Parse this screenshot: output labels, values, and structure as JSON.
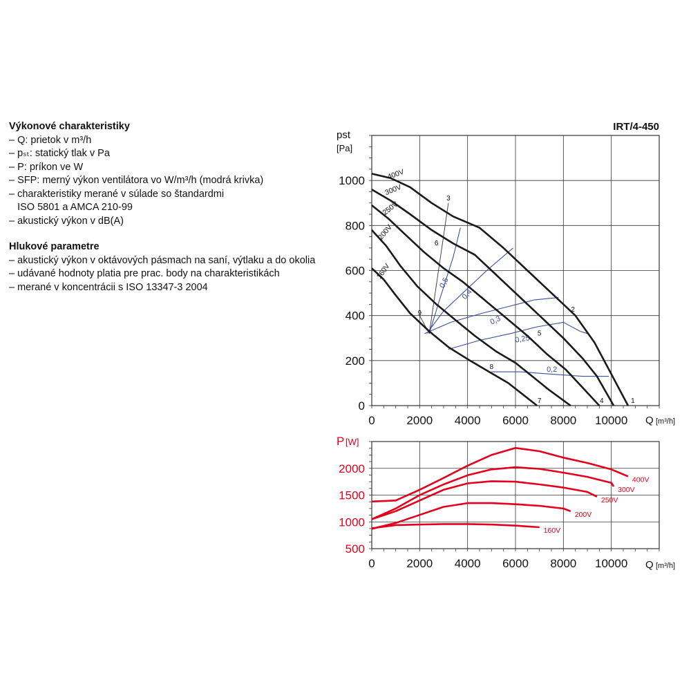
{
  "legend": {
    "perf_title": "Výkonové charakteristiky",
    "perf_items": [
      "– Q: prietok v m³/h",
      "– pₛₜ: statický tlak v Pa",
      "– P: príkon ve W",
      "– SFP: merný výkon ventilátora vo W/m³/h (modrá krivka)",
      "– charakteristiky merané v súlade so štandardmi",
      "   ISO 5801 a AMCA 210-99",
      "– akustický výkon v dB(A)"
    ],
    "noise_title": "Hlukové parametre",
    "noise_items": [
      "– akustický výkon v oktávových pásmach na saní, výtlaku a do okolia",
      "– udávané hodnoty platia pre prac. body na charakteristikách",
      "– merané v koncentrácii s ISO 13347-3 2004"
    ]
  },
  "colors": {
    "curve": "#1a1a1a",
    "sfp": "#3a4fa0",
    "power": "#e3001b",
    "grid": "#333333"
  },
  "chart_data": [
    {
      "type": "line",
      "title": "IRT/4-450",
      "ylabel": "pst",
      "ylabel_unit": "[Pa]",
      "xlabel": "Q",
      "xlabel_unit": "[m³/h]",
      "xlim": [
        0,
        12000
      ],
      "ylim": [
        0,
        1200
      ],
      "x_ticks": [
        "0",
        "2000",
        "4000",
        "6000",
        "8000",
        "10000"
      ],
      "y_ticks": [
        "0",
        "200",
        "400",
        "600",
        "800",
        "1000"
      ],
      "grid": true,
      "series": [
        {
          "name": "400V",
          "points": [
            [
              0,
              1030
            ],
            [
              800,
              1010
            ],
            [
              1600,
              970
            ],
            [
              2500,
              900
            ],
            [
              3400,
              840
            ],
            [
              4500,
              790
            ],
            [
              5500,
              700
            ],
            [
              6500,
              600
            ],
            [
              7500,
              500
            ],
            [
              8500,
              400
            ],
            [
              9300,
              280
            ],
            [
              10000,
              140
            ],
            [
              10700,
              0
            ]
          ]
        },
        {
          "name": "300V",
          "points": [
            [
              0,
              960
            ],
            [
              800,
              910
            ],
            [
              1600,
              850
            ],
            [
              2500,
              780
            ],
            [
              3400,
              720
            ],
            [
              4300,
              670
            ],
            [
              5200,
              580
            ],
            [
              6000,
              500
            ],
            [
              7000,
              400
            ],
            [
              8000,
              300
            ],
            [
              8800,
              210
            ],
            [
              9400,
              130
            ],
            [
              10100,
              0
            ]
          ]
        },
        {
          "name": "250V",
          "points": [
            [
              0,
              890
            ],
            [
              700,
              830
            ],
            [
              1400,
              760
            ],
            [
              2200,
              680
            ],
            [
              3000,
              610
            ],
            [
              3800,
              550
            ],
            [
              4700,
              470
            ],
            [
              5600,
              390
            ],
            [
              6500,
              310
            ],
            [
              7300,
              230
            ],
            [
              8100,
              160
            ],
            [
              8800,
              80
            ],
            [
              9500,
              0
            ]
          ]
        },
        {
          "name": "200V",
          "points": [
            [
              0,
              780
            ],
            [
              600,
              710
            ],
            [
              1200,
              620
            ],
            [
              1900,
              530
            ],
            [
              2700,
              450
            ],
            [
              3500,
              380
            ],
            [
              4300,
              310
            ],
            [
              5200,
              240
            ],
            [
              6000,
              190
            ],
            [
              6700,
              130
            ],
            [
              7400,
              70
            ],
            [
              8300,
              0
            ]
          ]
        },
        {
          "name": "160V",
          "points": [
            [
              0,
              610
            ],
            [
              500,
              560
            ],
            [
              1000,
              490
            ],
            [
              1600,
              410
            ],
            [
              2400,
              330
            ],
            [
              3200,
              260
            ],
            [
              4100,
              200
            ],
            [
              4900,
              150
            ],
            [
              5700,
              100
            ],
            [
              6300,
              50
            ],
            [
              6900,
              0
            ]
          ]
        }
      ],
      "sfp_curves": [
        {
          "label": "0,5",
          "points": [
            [
              2400,
              320
            ],
            [
              2800,
              460
            ],
            [
              3100,
              560
            ],
            [
              3400,
              660
            ],
            [
              3700,
              790
            ]
          ]
        },
        {
          "label": "0,4",
          "points": [
            [
              2300,
              320
            ],
            [
              3000,
              420
            ],
            [
              3900,
              510
            ],
            [
              4800,
              600
            ],
            [
              5900,
              700
            ]
          ]
        },
        {
          "label": "0,3",
          "points": [
            [
              2200,
              320
            ],
            [
              3300,
              370
            ],
            [
              4600,
              410
            ],
            [
              5700,
              440
            ],
            [
              6800,
              470
            ],
            [
              7800,
              480
            ]
          ]
        },
        {
          "label": "0,25",
          "points": [
            [
              3200,
              250
            ],
            [
              4500,
              290
            ],
            [
              5800,
              320
            ],
            [
              6900,
              350
            ],
            [
              8000,
              370
            ],
            [
              8700,
              330
            ],
            [
              9000,
              320
            ]
          ]
        },
        {
          "label": "0,2",
          "points": [
            [
              5000,
              150
            ],
            [
              6200,
              150
            ],
            [
              7500,
              140
            ],
            [
              8800,
              130
            ],
            [
              9900,
              130
            ]
          ]
        }
      ],
      "system_lines": [
        {
          "points": [
            [
              3200,
              900
            ],
            [
              2400,
              320
            ]
          ]
        },
        {
          "points": [
            [
              2000,
              400
            ],
            [
              2400,
              320
            ]
          ]
        }
      ],
      "point_labels": [
        {
          "text": "1",
          "x": 10900,
          "y": 0
        },
        {
          "text": "2",
          "x": 8400,
          "y": 405
        },
        {
          "text": "3",
          "x": 3200,
          "y": 900
        },
        {
          "text": "4",
          "x": 9600,
          "y": 0
        },
        {
          "text": "5",
          "x": 7000,
          "y": 300
        },
        {
          "text": "6",
          "x": 2700,
          "y": 700
        },
        {
          "text": "7",
          "x": 7000,
          "y": 0
        },
        {
          "text": "8",
          "x": 5000,
          "y": 150
        },
        {
          "text": "9",
          "x": 2000,
          "y": 390
        }
      ]
    },
    {
      "type": "line",
      "ylabel": "P",
      "ylabel_unit": "[W]",
      "xlabel": "Q",
      "xlabel_unit": "[m³/h]",
      "xlim": [
        0,
        12000
      ],
      "ylim": [
        500,
        2500
      ],
      "x_ticks": [
        "0",
        "2000",
        "4000",
        "6000",
        "8000",
        "10000"
      ],
      "y_ticks": [
        "500",
        "1000",
        "1500",
        "2000"
      ],
      "grid": true,
      "series": [
        {
          "name": "400V",
          "points": [
            [
              0,
              1380
            ],
            [
              1000,
              1400
            ],
            [
              2000,
              1600
            ],
            [
              3000,
              1820
            ],
            [
              4000,
              2050
            ],
            [
              5000,
              2250
            ],
            [
              6000,
              2380
            ],
            [
              7000,
              2320
            ],
            [
              8000,
              2200
            ],
            [
              9000,
              2100
            ],
            [
              10000,
              1980
            ],
            [
              10700,
              1850
            ]
          ]
        },
        {
          "name": "300V",
          "points": [
            [
              0,
              1050
            ],
            [
              1000,
              1250
            ],
            [
              2000,
              1500
            ],
            [
              3000,
              1700
            ],
            [
              4000,
              1870
            ],
            [
              5000,
              1980
            ],
            [
              6000,
              2020
            ],
            [
              7000,
              1990
            ],
            [
              8000,
              1920
            ],
            [
              9000,
              1840
            ],
            [
              10000,
              1730
            ],
            [
              10100,
              1660
            ]
          ]
        },
        {
          "name": "250V",
          "points": [
            [
              0,
              1050
            ],
            [
              1000,
              1200
            ],
            [
              2000,
              1400
            ],
            [
              3000,
              1600
            ],
            [
              4000,
              1720
            ],
            [
              5000,
              1760
            ],
            [
              6000,
              1750
            ],
            [
              7000,
              1700
            ],
            [
              8000,
              1640
            ],
            [
              9000,
              1560
            ],
            [
              9400,
              1470
            ]
          ]
        },
        {
          "name": "200V",
          "points": [
            [
              0,
              870
            ],
            [
              1000,
              980
            ],
            [
              2000,
              1130
            ],
            [
              3000,
              1280
            ],
            [
              4000,
              1350
            ],
            [
              5000,
              1350
            ],
            [
              6000,
              1330
            ],
            [
              7000,
              1300
            ],
            [
              8000,
              1250
            ],
            [
              8300,
              1200
            ]
          ]
        },
        {
          "name": "160V",
          "points": [
            [
              0,
              880
            ],
            [
              1000,
              940
            ],
            [
              2000,
              950
            ],
            [
              3000,
              960
            ],
            [
              4000,
              960
            ],
            [
              5000,
              950
            ],
            [
              6000,
              930
            ],
            [
              7000,
              900
            ]
          ]
        }
      ]
    }
  ]
}
